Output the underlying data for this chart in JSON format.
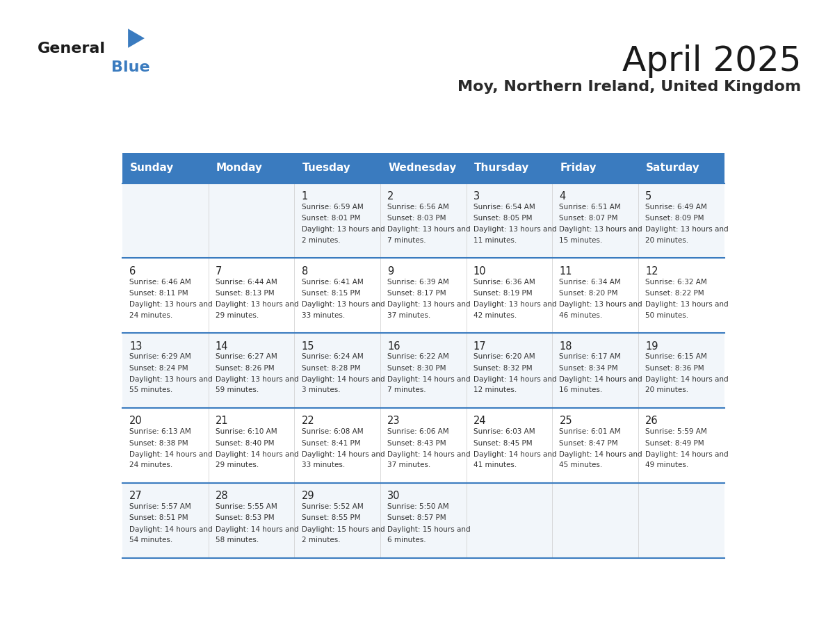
{
  "title": "April 2025",
  "subtitle": "Moy, Northern Ireland, United Kingdom",
  "days_of_week": [
    "Sunday",
    "Monday",
    "Tuesday",
    "Wednesday",
    "Thursday",
    "Friday",
    "Saturday"
  ],
  "header_bg": "#3a7bbf",
  "header_text": "#ffffff",
  "cell_bg_odd": "#f2f6fa",
  "cell_bg_even": "#ffffff",
  "row_line_color": "#3a7bbf",
  "text_color": "#333333",
  "day_num_color": "#222222",
  "calendar_data": [
    {
      "day": 1,
      "col": 2,
      "row": 0,
      "sunrise": "6:59 AM",
      "sunset": "8:01 PM",
      "daylight": "13 hours and 2 minutes."
    },
    {
      "day": 2,
      "col": 3,
      "row": 0,
      "sunrise": "6:56 AM",
      "sunset": "8:03 PM",
      "daylight": "13 hours and 7 minutes."
    },
    {
      "day": 3,
      "col": 4,
      "row": 0,
      "sunrise": "6:54 AM",
      "sunset": "8:05 PM",
      "daylight": "13 hours and 11 minutes."
    },
    {
      "day": 4,
      "col": 5,
      "row": 0,
      "sunrise": "6:51 AM",
      "sunset": "8:07 PM",
      "daylight": "13 hours and 15 minutes."
    },
    {
      "day": 5,
      "col": 6,
      "row": 0,
      "sunrise": "6:49 AM",
      "sunset": "8:09 PM",
      "daylight": "13 hours and 20 minutes."
    },
    {
      "day": 6,
      "col": 0,
      "row": 1,
      "sunrise": "6:46 AM",
      "sunset": "8:11 PM",
      "daylight": "13 hours and 24 minutes."
    },
    {
      "day": 7,
      "col": 1,
      "row": 1,
      "sunrise": "6:44 AM",
      "sunset": "8:13 PM",
      "daylight": "13 hours and 29 minutes."
    },
    {
      "day": 8,
      "col": 2,
      "row": 1,
      "sunrise": "6:41 AM",
      "sunset": "8:15 PM",
      "daylight": "13 hours and 33 minutes."
    },
    {
      "day": 9,
      "col": 3,
      "row": 1,
      "sunrise": "6:39 AM",
      "sunset": "8:17 PM",
      "daylight": "13 hours and 37 minutes."
    },
    {
      "day": 10,
      "col": 4,
      "row": 1,
      "sunrise": "6:36 AM",
      "sunset": "8:19 PM",
      "daylight": "13 hours and 42 minutes."
    },
    {
      "day": 11,
      "col": 5,
      "row": 1,
      "sunrise": "6:34 AM",
      "sunset": "8:20 PM",
      "daylight": "13 hours and 46 minutes."
    },
    {
      "day": 12,
      "col": 6,
      "row": 1,
      "sunrise": "6:32 AM",
      "sunset": "8:22 PM",
      "daylight": "13 hours and 50 minutes."
    },
    {
      "day": 13,
      "col": 0,
      "row": 2,
      "sunrise": "6:29 AM",
      "sunset": "8:24 PM",
      "daylight": "13 hours and 55 minutes."
    },
    {
      "day": 14,
      "col": 1,
      "row": 2,
      "sunrise": "6:27 AM",
      "sunset": "8:26 PM",
      "daylight": "13 hours and 59 minutes."
    },
    {
      "day": 15,
      "col": 2,
      "row": 2,
      "sunrise": "6:24 AM",
      "sunset": "8:28 PM",
      "daylight": "14 hours and 3 minutes."
    },
    {
      "day": 16,
      "col": 3,
      "row": 2,
      "sunrise": "6:22 AM",
      "sunset": "8:30 PM",
      "daylight": "14 hours and 7 minutes."
    },
    {
      "day": 17,
      "col": 4,
      "row": 2,
      "sunrise": "6:20 AM",
      "sunset": "8:32 PM",
      "daylight": "14 hours and 12 minutes."
    },
    {
      "day": 18,
      "col": 5,
      "row": 2,
      "sunrise": "6:17 AM",
      "sunset": "8:34 PM",
      "daylight": "14 hours and 16 minutes."
    },
    {
      "day": 19,
      "col": 6,
      "row": 2,
      "sunrise": "6:15 AM",
      "sunset": "8:36 PM",
      "daylight": "14 hours and 20 minutes."
    },
    {
      "day": 20,
      "col": 0,
      "row": 3,
      "sunrise": "6:13 AM",
      "sunset": "8:38 PM",
      "daylight": "14 hours and 24 minutes."
    },
    {
      "day": 21,
      "col": 1,
      "row": 3,
      "sunrise": "6:10 AM",
      "sunset": "8:40 PM",
      "daylight": "14 hours and 29 minutes."
    },
    {
      "day": 22,
      "col": 2,
      "row": 3,
      "sunrise": "6:08 AM",
      "sunset": "8:41 PM",
      "daylight": "14 hours and 33 minutes."
    },
    {
      "day": 23,
      "col": 3,
      "row": 3,
      "sunrise": "6:06 AM",
      "sunset": "8:43 PM",
      "daylight": "14 hours and 37 minutes."
    },
    {
      "day": 24,
      "col": 4,
      "row": 3,
      "sunrise": "6:03 AM",
      "sunset": "8:45 PM",
      "daylight": "14 hours and 41 minutes."
    },
    {
      "day": 25,
      "col": 5,
      "row": 3,
      "sunrise": "6:01 AM",
      "sunset": "8:47 PM",
      "daylight": "14 hours and 45 minutes."
    },
    {
      "day": 26,
      "col": 6,
      "row": 3,
      "sunrise": "5:59 AM",
      "sunset": "8:49 PM",
      "daylight": "14 hours and 49 minutes."
    },
    {
      "day": 27,
      "col": 0,
      "row": 4,
      "sunrise": "5:57 AM",
      "sunset": "8:51 PM",
      "daylight": "14 hours and 54 minutes."
    },
    {
      "day": 28,
      "col": 1,
      "row": 4,
      "sunrise": "5:55 AM",
      "sunset": "8:53 PM",
      "daylight": "14 hours and 58 minutes."
    },
    {
      "day": 29,
      "col": 2,
      "row": 4,
      "sunrise": "5:52 AM",
      "sunset": "8:55 PM",
      "daylight": "15 hours and 2 minutes."
    },
    {
      "day": 30,
      "col": 3,
      "row": 4,
      "sunrise": "5:50 AM",
      "sunset": "8:57 PM",
      "daylight": "15 hours and 6 minutes."
    }
  ]
}
